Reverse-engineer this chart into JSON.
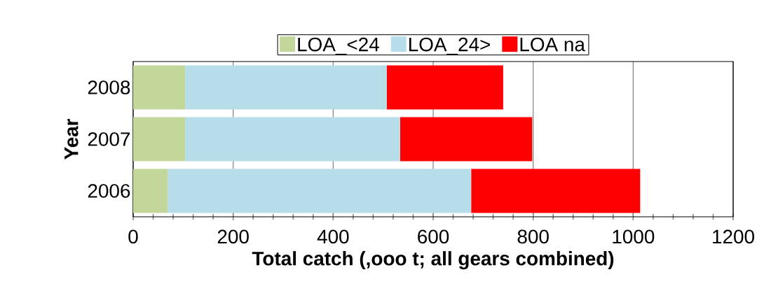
{
  "chart_data": {
    "type": "bar",
    "orientation": "horizontal",
    "stacked": true,
    "categories": [
      "2008",
      "2007",
      "2006"
    ],
    "series": [
      {
        "name": "LOA_<24",
        "color": "#c4d79b",
        "values": [
          104,
          104,
          69
        ]
      },
      {
        "name": "LOA_24>",
        "color": "#b7dde8",
        "values": [
          403,
          430,
          607
        ]
      },
      {
        "name": "LOA na",
        "color": "#ff0000",
        "values": [
          233,
          264,
          338
        ]
      }
    ],
    "xlabel": "Total catch (,ooo t; all gears combined)",
    "ylabel": "Year",
    "xlim": [
      0,
      1200
    ],
    "xticks": [
      0,
      200,
      400,
      600,
      800,
      1000,
      1200
    ],
    "grid": "x",
    "legend": "top"
  }
}
